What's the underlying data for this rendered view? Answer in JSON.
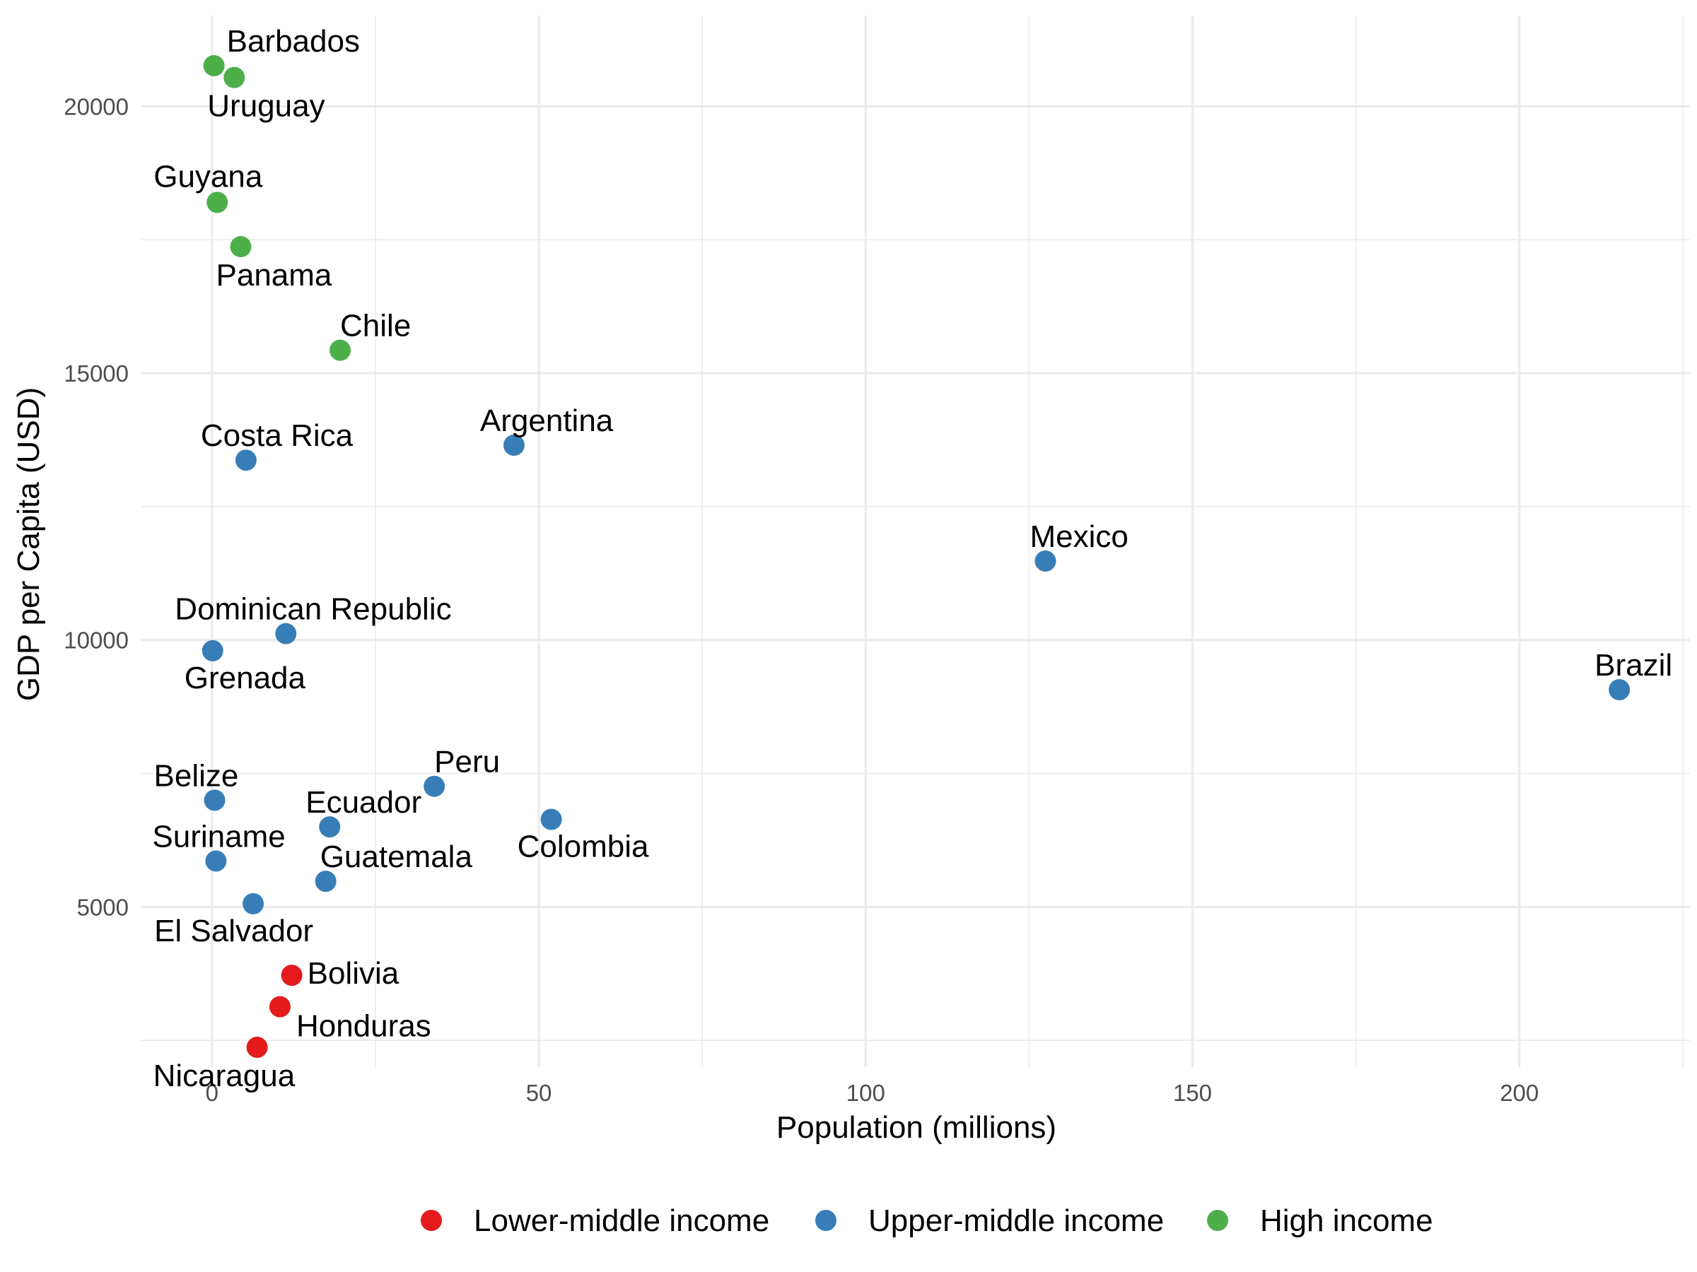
{
  "chart_data": {
    "type": "scatter",
    "title": "",
    "xlabel": "Population (millions)",
    "ylabel": "GDP per Capita (USD)",
    "xlim": [
      -10.8,
      226.1
    ],
    "ylim": [
      2000,
      21700
    ],
    "x_ticks": [
      0,
      50,
      100,
      150,
      200
    ],
    "y_ticks": [
      5000,
      10000,
      15000,
      20000
    ],
    "grid": true,
    "legend_position": "bottom",
    "colors": {
      "Lower-middle income": "#e41a1c",
      "Upper-middle income": "#377eb8",
      "High income": "#4daf4a"
    },
    "series": [
      {
        "name": "Lower-middle income",
        "points": [
          {
            "label": "Bolivia",
            "x": 12.2,
            "y": 3720
          },
          {
            "label": "Honduras",
            "x": 10.4,
            "y": 3130
          },
          {
            "label": "Nicaragua",
            "x": 6.9,
            "y": 2370
          }
        ]
      },
      {
        "name": "Upper-middle income",
        "points": [
          {
            "label": "Costa Rica",
            "x": 5.2,
            "y": 13370
          },
          {
            "label": "Argentina",
            "x": 46.2,
            "y": 13650
          },
          {
            "label": "Mexico",
            "x": 127.5,
            "y": 11480
          },
          {
            "label": "Dominican Republic",
            "x": 11.3,
            "y": 10120
          },
          {
            "label": "Grenada",
            "x": 0.1,
            "y": 9800
          },
          {
            "label": "Brazil",
            "x": 215.3,
            "y": 9070
          },
          {
            "label": "Peru",
            "x": 34.0,
            "y": 7260
          },
          {
            "label": "Belize",
            "x": 0.4,
            "y": 7000
          },
          {
            "label": "Colombia",
            "x": 51.9,
            "y": 6640
          },
          {
            "label": "Ecuador",
            "x": 18.0,
            "y": 6500
          },
          {
            "label": "Suriname",
            "x": 0.6,
            "y": 5860
          },
          {
            "label": "Guatemala",
            "x": 17.4,
            "y": 5480
          },
          {
            "label": "El Salvador",
            "x": 6.3,
            "y": 5060
          }
        ]
      },
      {
        "name": "High income",
        "points": [
          {
            "label": "Barbados",
            "x": 0.3,
            "y": 20760
          },
          {
            "label": "Uruguay",
            "x": 3.4,
            "y": 20540
          },
          {
            "label": "Guyana",
            "x": 0.8,
            "y": 18200
          },
          {
            "label": "Panama",
            "x": 4.4,
            "y": 17370
          },
          {
            "label": "Chile",
            "x": 19.6,
            "y": 15430
          }
        ]
      }
    ]
  }
}
